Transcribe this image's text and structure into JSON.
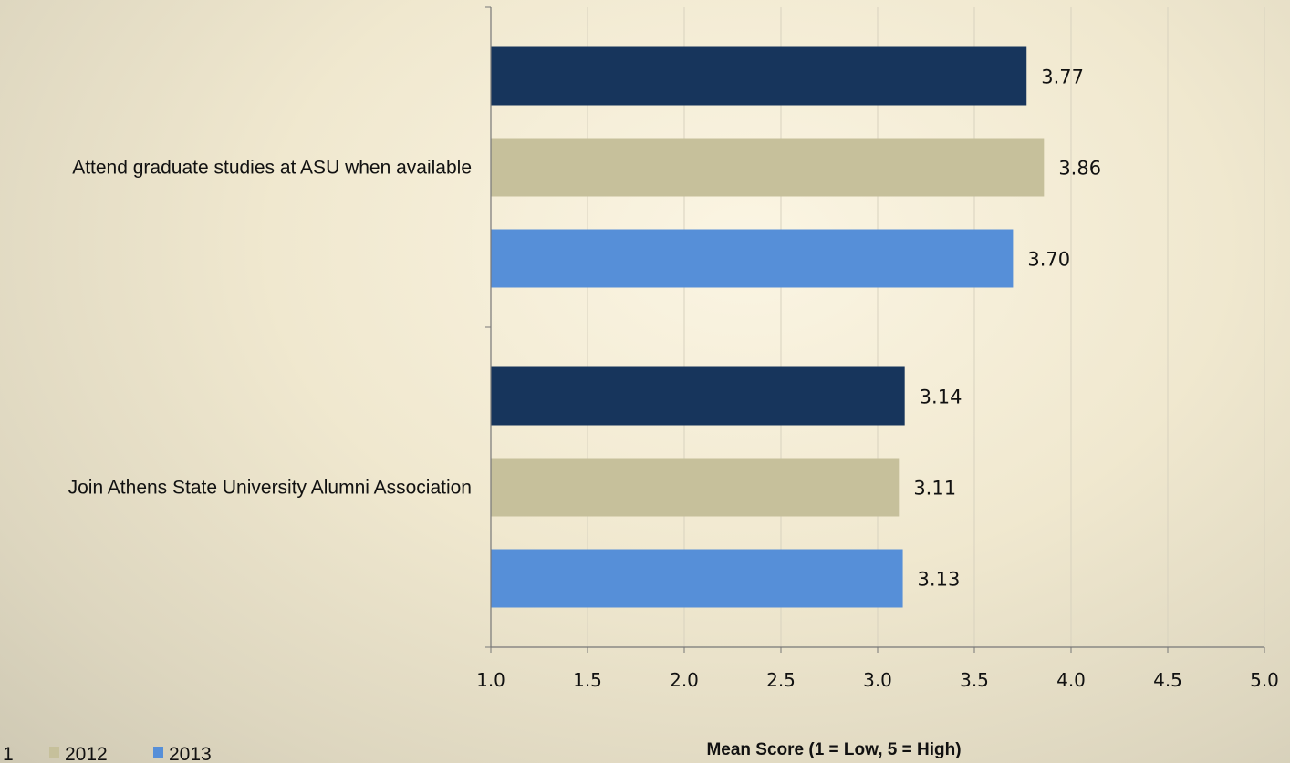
{
  "chart_data": {
    "type": "bar",
    "orientation": "horizontal",
    "categories": [
      "Attend graduate studies at ASU when available",
      "Join Athens State University Alumni Association"
    ],
    "series": [
      {
        "name": "1",
        "color": "#17355c",
        "values": [
          3.77,
          3.14
        ]
      },
      {
        "name": "2012",
        "color": "#c6c09b",
        "values": [
          3.86,
          3.11
        ]
      },
      {
        "name": "2013",
        "color": "#568fd8",
        "values": [
          3.7,
          3.13
        ]
      }
    ],
    "value_labels": [
      [
        "3.77",
        "3.14"
      ],
      [
        "3.86",
        "3.11"
      ],
      [
        "3.70",
        "3.13"
      ]
    ],
    "xlabel": "Mean Score (1 = Low, 5 = High)",
    "xlim": [
      1.0,
      5.0
    ],
    "xticks": [
      "1.0",
      "1.5",
      "2.0",
      "2.5",
      "3.0",
      "3.5",
      "4.0",
      "4.5",
      "5.0"
    ],
    "grid": "vertical",
    "legend_position": "bottom-left"
  }
}
